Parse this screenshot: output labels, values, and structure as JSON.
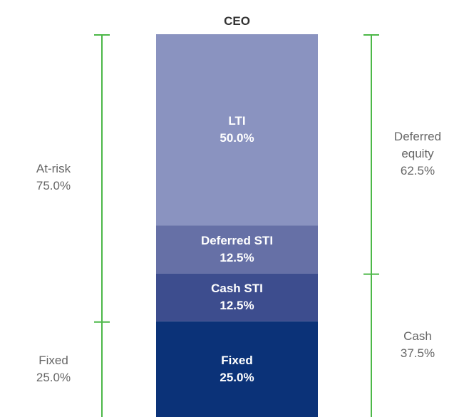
{
  "chart_data": {
    "type": "stacked_bar",
    "categories": [
      "CEO"
    ],
    "ylim": [
      0,
      100
    ],
    "series": [
      {
        "name": "Fixed",
        "color": "#0b3278",
        "values": [
          25
        ],
        "value_labels": [
          "25.0%"
        ]
      },
      {
        "name": "Cash STI",
        "color": "#3d4d8e",
        "values": [
          12.5
        ],
        "value_labels": [
          "12.5%"
        ]
      },
      {
        "name": "Deferred STI",
        "color": "#6670a6",
        "values": [
          12.5
        ],
        "value_labels": [
          "12.5%"
        ]
      },
      {
        "name": "LTI",
        "color": "#8a93c0",
        "values": [
          50
        ],
        "value_labels": [
          "50.0%"
        ]
      }
    ],
    "bracket_color": "#4cb848",
    "brackets": {
      "left": [
        {
          "label": "Fixed",
          "value": 25,
          "value_label": "25.0%"
        },
        {
          "label": "At-risk",
          "value": 75,
          "value_label": "75.0%"
        }
      ],
      "right": [
        {
          "label": "Cash",
          "value": 37.5,
          "value_label": "37.5%"
        },
        {
          "label": "Deferred equity",
          "value": 62.5,
          "value_label": "62.5%"
        }
      ]
    }
  }
}
